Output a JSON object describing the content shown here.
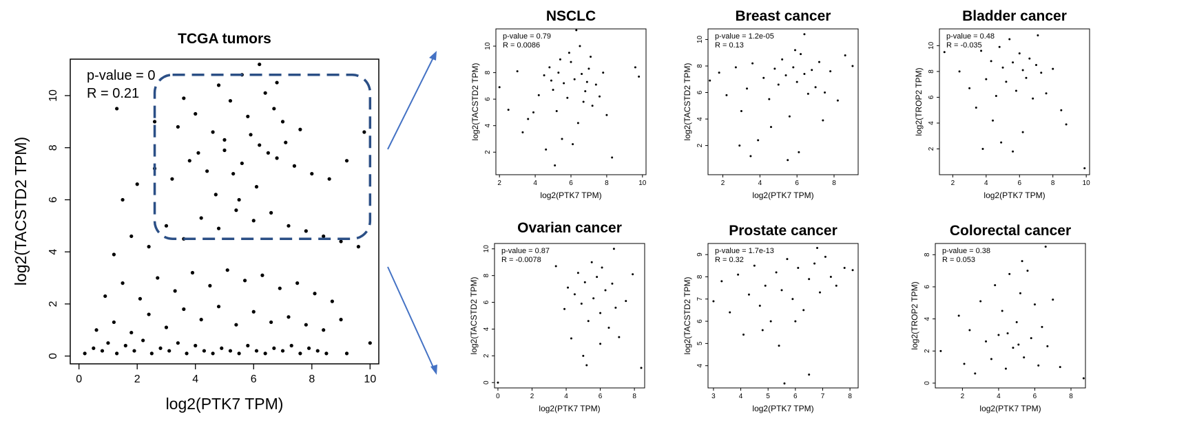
{
  "chart_data": [
    {
      "id": "tcga",
      "type": "scatter",
      "title": "TCGA tumors",
      "xlabel": "log2(PTK7 TPM)",
      "ylabel": "log2(TACSTD2 TPM)",
      "annotation": [
        "p-value = 0",
        "R = 0.21"
      ],
      "xlim": [
        -0.3,
        10.3
      ],
      "ylim": [
        -0.3,
        11.4
      ],
      "xticks": [
        0,
        2,
        4,
        6,
        8,
        10
      ],
      "yticks": [
        0,
        2,
        4,
        6,
        8,
        10
      ],
      "grid": false,
      "cluster": {
        "x": [
          2.6,
          10.0
        ],
        "y": [
          4.5,
          10.8
        ]
      },
      "points": [
        [
          0.2,
          0.1
        ],
        [
          0.5,
          0.3
        ],
        [
          0.8,
          0.2
        ],
        [
          1.0,
          0.5
        ],
        [
          1.3,
          0.1
        ],
        [
          1.6,
          0.4
        ],
        [
          1.9,
          0.2
        ],
        [
          2.2,
          0.6
        ],
        [
          2.5,
          0.1
        ],
        [
          2.8,
          0.3
        ],
        [
          3.1,
          0.2
        ],
        [
          3.4,
          0.5
        ],
        [
          3.7,
          0.1
        ],
        [
          4.0,
          0.4
        ],
        [
          4.3,
          0.2
        ],
        [
          4.6,
          0.1
        ],
        [
          4.9,
          0.3
        ],
        [
          5.2,
          0.2
        ],
        [
          5.5,
          0.1
        ],
        [
          5.8,
          0.4
        ],
        [
          6.1,
          0.2
        ],
        [
          6.4,
          0.1
        ],
        [
          6.7,
          0.3
        ],
        [
          7.0,
          0.2
        ],
        [
          7.3,
          0.4
        ],
        [
          7.6,
          0.1
        ],
        [
          7.9,
          0.3
        ],
        [
          8.2,
          0.2
        ],
        [
          8.5,
          0.1
        ],
        [
          9.2,
          0.1
        ],
        [
          10.0,
          0.5
        ],
        [
          0.6,
          1.0
        ],
        [
          1.2,
          1.3
        ],
        [
          1.8,
          0.9
        ],
        [
          2.4,
          1.6
        ],
        [
          3.0,
          1.1
        ],
        [
          3.6,
          1.8
        ],
        [
          4.2,
          1.4
        ],
        [
          4.8,
          1.9
        ],
        [
          5.4,
          1.2
        ],
        [
          6.0,
          1.7
        ],
        [
          6.6,
          1.3
        ],
        [
          7.2,
          1.5
        ],
        [
          7.8,
          1.2
        ],
        [
          8.4,
          1.0
        ],
        [
          9.0,
          1.4
        ],
        [
          0.9,
          2.3
        ],
        [
          1.5,
          2.8
        ],
        [
          2.1,
          2.2
        ],
        [
          2.7,
          3.0
        ],
        [
          3.3,
          2.5
        ],
        [
          3.9,
          3.2
        ],
        [
          4.5,
          2.7
        ],
        [
          5.1,
          3.3
        ],
        [
          5.7,
          2.9
        ],
        [
          6.3,
          3.1
        ],
        [
          6.9,
          2.6
        ],
        [
          7.5,
          2.8
        ],
        [
          8.1,
          2.4
        ],
        [
          8.7,
          2.1
        ],
        [
          1.2,
          3.9
        ],
        [
          1.8,
          4.6
        ],
        [
          2.4,
          4.2
        ],
        [
          3.0,
          5.0
        ],
        [
          3.6,
          4.5
        ],
        [
          4.2,
          5.3
        ],
        [
          4.8,
          4.9
        ],
        [
          5.4,
          5.6
        ],
        [
          6.0,
          5.2
        ],
        [
          6.6,
          5.5
        ],
        [
          7.2,
          5.0
        ],
        [
          7.8,
          4.8
        ],
        [
          8.4,
          4.6
        ],
        [
          9.0,
          4.4
        ],
        [
          9.6,
          4.2
        ],
        [
          1.5,
          6.0
        ],
        [
          2.0,
          6.6
        ],
        [
          2.6,
          7.2
        ],
        [
          3.2,
          6.8
        ],
        [
          3.8,
          7.5
        ],
        [
          4.4,
          7.1
        ],
        [
          5.0,
          7.9
        ],
        [
          5.6,
          7.4
        ],
        [
          6.2,
          8.1
        ],
        [
          6.8,
          7.6
        ],
        [
          7.4,
          7.3
        ],
        [
          8.0,
          7.0
        ],
        [
          8.6,
          6.8
        ],
        [
          9.2,
          7.5
        ],
        [
          9.8,
          8.6
        ],
        [
          1.3,
          9.5
        ],
        [
          2.6,
          9.0
        ],
        [
          3.4,
          8.8
        ],
        [
          4.0,
          9.3
        ],
        [
          4.6,
          8.6
        ],
        [
          5.2,
          9.8
        ],
        [
          5.8,
          9.2
        ],
        [
          6.4,
          10.1
        ],
        [
          7.0,
          9.0
        ],
        [
          7.6,
          8.7
        ],
        [
          4.8,
          10.4
        ],
        [
          5.6,
          10.8
        ],
        [
          6.2,
          11.2
        ],
        [
          6.8,
          10.5
        ],
        [
          3.6,
          9.9
        ],
        [
          5.0,
          8.3
        ],
        [
          5.9,
          8.5
        ],
        [
          6.5,
          7.8
        ],
        [
          5.3,
          7.0
        ],
        [
          6.1,
          6.5
        ],
        [
          4.7,
          6.2
        ],
        [
          7.1,
          8.2
        ],
        [
          5.5,
          6.0
        ],
        [
          6.7,
          9.5
        ],
        [
          4.1,
          7.8
        ]
      ]
    },
    {
      "id": "nsclc",
      "type": "scatter",
      "title": "NSCLC",
      "xlabel": "log2(PTK7 TPM)",
      "ylabel": "log2(TACSTD2 TPM)",
      "annotation": [
        "p-value = 0.79",
        "R = 0.0086"
      ],
      "xlim": [
        1.8,
        10.2
      ],
      "ylim": [
        0.3,
        11.3
      ],
      "xticks": [
        2,
        4,
        6,
        8,
        10
      ],
      "yticks": [
        2,
        4,
        6,
        8,
        10
      ],
      "points": [
        [
          2.0,
          6.9
        ],
        [
          2.5,
          5.2
        ],
        [
          3.0,
          8.1
        ],
        [
          3.3,
          3.5
        ],
        [
          3.6,
          4.5
        ],
        [
          3.9,
          5.0
        ],
        [
          4.2,
          6.3
        ],
        [
          4.5,
          7.8
        ],
        [
          4.8,
          8.4
        ],
        [
          5.0,
          6.7
        ],
        [
          5.2,
          5.1
        ],
        [
          5.4,
          9.0
        ],
        [
          5.6,
          7.2
        ],
        [
          5.8,
          6.1
        ],
        [
          6.0,
          8.8
        ],
        [
          6.2,
          7.5
        ],
        [
          6.4,
          4.2
        ],
        [
          6.6,
          7.9
        ],
        [
          6.8,
          6.6
        ],
        [
          7.0,
          8.3
        ],
        [
          7.2,
          5.5
        ],
        [
          7.4,
          7.1
        ],
        [
          7.6,
          6.2
        ],
        [
          7.8,
          8.0
        ],
        [
          8.0,
          4.8
        ],
        [
          8.3,
          1.6
        ],
        [
          9.6,
          8.4
        ],
        [
          9.8,
          7.7
        ],
        [
          4.6,
          2.2
        ],
        [
          5.1,
          1.0
        ],
        [
          5.5,
          3.0
        ],
        [
          6.1,
          2.6
        ],
        [
          6.5,
          10.0
        ],
        [
          6.3,
          11.2
        ],
        [
          5.9,
          9.5
        ],
        [
          5.3,
          8.0
        ],
        [
          6.7,
          5.8
        ],
        [
          7.1,
          9.2
        ],
        [
          4.9,
          7.4
        ],
        [
          6.9,
          7.3
        ]
      ]
    },
    {
      "id": "breast",
      "type": "scatter",
      "title": "Breast cancer",
      "xlabel": "log2(PTK7 TPM)",
      "ylabel": "log2(TACSTD2 TPM)",
      "annotation": [
        "p-value = 1.2e-05",
        "R = 0.13"
      ],
      "xlim": [
        1.2,
        9.3
      ],
      "ylim": [
        -0.2,
        10.8
      ],
      "xticks": [
        2,
        4,
        6,
        8
      ],
      "yticks": [
        2,
        4,
        6,
        8,
        10
      ],
      "points": [
        [
          1.3,
          6.9
        ],
        [
          1.8,
          7.5
        ],
        [
          2.2,
          5.8
        ],
        [
          2.7,
          7.9
        ],
        [
          3.0,
          4.6
        ],
        [
          3.3,
          6.3
        ],
        [
          3.6,
          8.2
        ],
        [
          3.9,
          2.4
        ],
        [
          4.2,
          7.1
        ],
        [
          4.5,
          5.5
        ],
        [
          4.8,
          7.8
        ],
        [
          5.0,
          6.6
        ],
        [
          5.2,
          8.5
        ],
        [
          5.4,
          7.3
        ],
        [
          5.6,
          4.2
        ],
        [
          5.8,
          7.9
        ],
        [
          6.0,
          6.8
        ],
        [
          6.2,
          8.9
        ],
        [
          6.4,
          7.4
        ],
        [
          6.6,
          5.9
        ],
        [
          6.8,
          7.7
        ],
        [
          7.0,
          6.4
        ],
        [
          7.2,
          8.3
        ],
        [
          7.5,
          6.0
        ],
        [
          7.8,
          7.6
        ],
        [
          8.2,
          5.4
        ],
        [
          8.6,
          8.8
        ],
        [
          9.0,
          8.0
        ],
        [
          3.5,
          1.2
        ],
        [
          5.5,
          0.9
        ],
        [
          6.4,
          10.4
        ],
        [
          4.6,
          3.4
        ],
        [
          7.4,
          3.9
        ],
        [
          2.9,
          2.0
        ],
        [
          6.1,
          1.5
        ],
        [
          5.9,
          9.2
        ]
      ]
    },
    {
      "id": "bladder",
      "type": "scatter",
      "title": "Bladder cancer",
      "xlabel": "log2(PTK7 TPM)",
      "ylabel": "log2(TROP2 TPM)",
      "annotation": [
        "p-value = 0.48",
        "R = -0.035"
      ],
      "xlim": [
        1.2,
        10.2
      ],
      "ylim": [
        0.0,
        11.3
      ],
      "xticks": [
        2,
        4,
        6,
        8,
        10
      ],
      "yticks": [
        2,
        4,
        6,
        8,
        10
      ],
      "points": [
        [
          1.5,
          9.5
        ],
        [
          2.4,
          8.0
        ],
        [
          3.0,
          6.7
        ],
        [
          3.4,
          5.2
        ],
        [
          3.7,
          9.6
        ],
        [
          4.0,
          7.4
        ],
        [
          4.3,
          8.8
        ],
        [
          4.6,
          6.1
        ],
        [
          4.8,
          9.9
        ],
        [
          5.0,
          8.3
        ],
        [
          5.2,
          7.2
        ],
        [
          5.4,
          10.5
        ],
        [
          5.6,
          8.7
        ],
        [
          5.8,
          6.5
        ],
        [
          6.0,
          9.4
        ],
        [
          6.2,
          8.1
        ],
        [
          6.4,
          7.5
        ],
        [
          6.6,
          9.0
        ],
        [
          6.8,
          5.9
        ],
        [
          7.0,
          8.5
        ],
        [
          7.3,
          7.9
        ],
        [
          7.6,
          6.3
        ],
        [
          8.0,
          8.2
        ],
        [
          8.5,
          5.0
        ],
        [
          8.8,
          3.9
        ],
        [
          9.9,
          0.5
        ],
        [
          3.8,
          2.0
        ],
        [
          4.9,
          2.5
        ],
        [
          5.6,
          1.8
        ],
        [
          6.2,
          3.3
        ],
        [
          4.4,
          4.2
        ],
        [
          7.1,
          10.8
        ]
      ]
    },
    {
      "id": "ovarian",
      "type": "scatter",
      "title": "Ovarian cancer",
      "xlabel": "log2(PTK7 TPM)",
      "ylabel": "log2(TACSTD2 TPM)",
      "annotation": [
        "p-value = 0.87",
        "R = -0.0078"
      ],
      "xlim": [
        -0.2,
        8.6
      ],
      "ylim": [
        -0.4,
        10.4
      ],
      "xticks": [
        0,
        2,
        4,
        6,
        8
      ],
      "yticks": [
        0,
        2,
        4,
        6,
        8,
        10
      ],
      "points": [
        [
          0.0,
          0.0
        ],
        [
          3.4,
          8.7
        ],
        [
          3.9,
          5.5
        ],
        [
          4.1,
          7.1
        ],
        [
          4.3,
          3.3
        ],
        [
          4.5,
          6.6
        ],
        [
          4.7,
          8.2
        ],
        [
          4.9,
          5.9
        ],
        [
          5.0,
          2.0
        ],
        [
          5.1,
          7.5
        ],
        [
          5.3,
          4.6
        ],
        [
          5.5,
          9.0
        ],
        [
          5.6,
          6.3
        ],
        [
          5.8,
          7.9
        ],
        [
          6.0,
          5.2
        ],
        [
          6.1,
          8.6
        ],
        [
          6.3,
          6.9
        ],
        [
          6.5,
          4.1
        ],
        [
          6.7,
          7.4
        ],
        [
          6.9,
          5.6
        ],
        [
          7.1,
          3.4
        ],
        [
          7.5,
          6.1
        ],
        [
          7.9,
          8.1
        ],
        [
          8.4,
          1.1
        ],
        [
          6.8,
          10.0
        ],
        [
          5.2,
          1.3
        ],
        [
          6.0,
          2.9
        ]
      ]
    },
    {
      "id": "prostate",
      "type": "scatter",
      "title": "Prostate cancer",
      "xlabel": "log2(PTK7 TPM)",
      "ylabel": "log2(TACSTD2 TPM)",
      "annotation": [
        "p-value = 1.7e-13",
        "R = 0.32"
      ],
      "xlim": [
        2.8,
        8.3
      ],
      "ylim": [
        3.0,
        9.5
      ],
      "xticks": [
        3,
        4,
        5,
        6,
        7,
        8
      ],
      "yticks": [
        4,
        5,
        6,
        7,
        8,
        9
      ],
      "points": [
        [
          3.0,
          6.9
        ],
        [
          3.3,
          7.8
        ],
        [
          3.6,
          6.4
        ],
        [
          3.9,
          8.1
        ],
        [
          4.1,
          5.4
        ],
        [
          4.3,
          7.2
        ],
        [
          4.5,
          8.5
        ],
        [
          4.7,
          6.7
        ],
        [
          4.9,
          7.6
        ],
        [
          5.1,
          6.0
        ],
        [
          5.3,
          8.2
        ],
        [
          5.4,
          4.9
        ],
        [
          5.5,
          7.4
        ],
        [
          5.7,
          8.8
        ],
        [
          5.9,
          7.0
        ],
        [
          6.1,
          8.4
        ],
        [
          6.3,
          6.5
        ],
        [
          6.5,
          7.9
        ],
        [
          6.7,
          8.6
        ],
        [
          6.9,
          7.3
        ],
        [
          7.1,
          8.9
        ],
        [
          7.3,
          8.0
        ],
        [
          7.5,
          7.6
        ],
        [
          7.8,
          8.4
        ],
        [
          8.1,
          8.3
        ],
        [
          5.6,
          3.2
        ],
        [
          6.5,
          3.6
        ],
        [
          6.8,
          9.3
        ],
        [
          4.8,
          5.6
        ],
        [
          6.0,
          6.0
        ]
      ]
    },
    {
      "id": "colorectal",
      "type": "scatter",
      "title": "Colorectal cancer",
      "xlabel": "log2(PTK7 TPM)",
      "ylabel": "log2(TROP2 TPM)",
      "annotation": [
        "p-value = 0.38",
        "R = 0.053"
      ],
      "xlim": [
        0.5,
        8.8
      ],
      "ylim": [
        -0.3,
        8.7
      ],
      "xticks": [
        2,
        4,
        6,
        8
      ],
      "yticks": [
        0,
        2,
        4,
        6,
        8
      ],
      "points": [
        [
          0.8,
          2.0
        ],
        [
          1.8,
          4.2
        ],
        [
          2.1,
          1.2
        ],
        [
          2.4,
          3.3
        ],
        [
          2.7,
          0.6
        ],
        [
          3.0,
          5.1
        ],
        [
          3.3,
          2.6
        ],
        [
          3.6,
          1.5
        ],
        [
          3.8,
          6.1
        ],
        [
          4.0,
          3.0
        ],
        [
          4.2,
          4.5
        ],
        [
          4.4,
          0.9
        ],
        [
          4.6,
          6.8
        ],
        [
          4.8,
          2.2
        ],
        [
          5.0,
          3.8
        ],
        [
          5.2,
          5.6
        ],
        [
          5.4,
          1.6
        ],
        [
          5.6,
          7.0
        ],
        [
          5.8,
          2.8
        ],
        [
          6.0,
          4.9
        ],
        [
          6.2,
          1.1
        ],
        [
          6.4,
          3.5
        ],
        [
          6.7,
          2.3
        ],
        [
          7.0,
          5.2
        ],
        [
          7.4,
          1.0
        ],
        [
          8.7,
          0.3
        ],
        [
          6.6,
          8.5
        ],
        [
          5.3,
          7.6
        ],
        [
          4.5,
          3.1
        ],
        [
          5.1,
          2.4
        ]
      ]
    }
  ]
}
